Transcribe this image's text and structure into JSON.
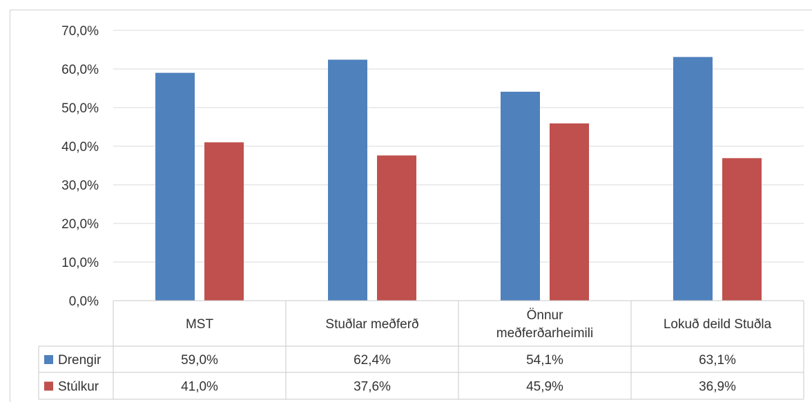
{
  "chart_data": {
    "type": "bar",
    "categories": [
      [
        "MST"
      ],
      [
        "Stuðlar meðferð"
      ],
      [
        "Önnur",
        "meðferðarheimili"
      ],
      [
        "Lokuð deild Stuðla"
      ]
    ],
    "series": [
      {
        "name": "Drengir",
        "values": [
          59.0,
          62.4,
          54.1,
          63.1
        ],
        "labels": [
          "59,0%",
          "62,4%",
          "54,1%",
          "63,1%"
        ],
        "color": "#4F81BD"
      },
      {
        "name": "Stúlkur",
        "values": [
          41.0,
          37.6,
          45.9,
          36.9
        ],
        "labels": [
          "41,0%",
          "37,6%",
          "45,9%",
          "36,9%"
        ],
        "color": "#C0504D"
      }
    ],
    "yticks": [
      "0,0%",
      "10,0%",
      "20,0%",
      "30,0%",
      "40,0%",
      "50,0%",
      "60,0%",
      "70,0%"
    ],
    "ylim": [
      0,
      70
    ],
    "grid": true,
    "legend": "data-table-left"
  }
}
